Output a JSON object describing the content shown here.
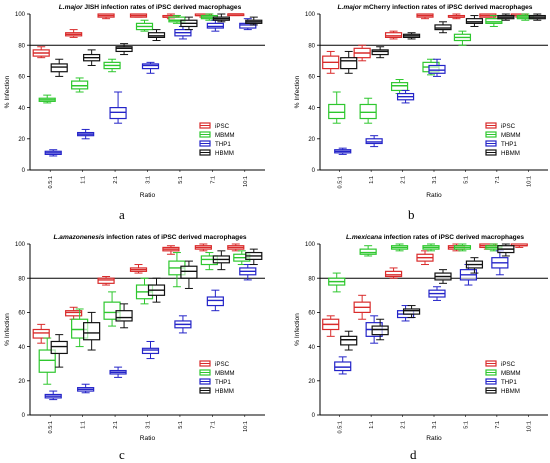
{
  "colors": {
    "iPSC": "#d92b2b",
    "MBMM": "#2ec72e",
    "THP1": "#2424c8",
    "HBMM": "#111111"
  },
  "chart_data": [
    {
      "type": "box",
      "letter": "a",
      "title_italic": "L.major",
      "title_rest": " JISH infection rates of iPSC derived macrophages",
      "xlabel": "Ratio",
      "ylabel": "% Infection",
      "ylim": [
        0,
        100
      ],
      "yticks": [
        0,
        20,
        40,
        60,
        80,
        100
      ],
      "reference_line": 80,
      "categories": [
        "0.5:1",
        "1:1",
        "2:1",
        "3:1",
        "5:1",
        "7:1",
        "10:1"
      ],
      "legend": [
        "iPSC",
        "MBMM",
        "THP1",
        "HBMM"
      ],
      "series": [
        {
          "name": "iPSC",
          "boxes": [
            [
              72,
              73,
              75,
              77,
              79
            ],
            [
              85,
              86,
              87,
              88,
              90
            ],
            [
              97,
              98,
              99,
              100,
              100
            ],
            [
              98,
              98,
              99,
              100,
              100
            ],
            [
              97,
              98,
              98,
              99,
              100
            ],
            [
              98,
              99,
              99,
              100,
              100
            ],
            [
              99,
              99,
              100,
              100,
              100
            ]
          ]
        },
        {
          "name": "MBMM",
          "boxes": [
            [
              43,
              44,
              45,
              46,
              48
            ],
            [
              50,
              52,
              54,
              57,
              59
            ],
            [
              63,
              65,
              67,
              69,
              71
            ],
            [
              89,
              90,
              92,
              94,
              96
            ],
            [
              94,
              95,
              96,
              98,
              99
            ],
            [
              96,
              97,
              98,
              99,
              100
            ],
            [
              null,
              null,
              null,
              null,
              null
            ]
          ]
        },
        {
          "name": "THP1",
          "boxes": [
            [
              9,
              10,
              11,
              12,
              13
            ],
            [
              20,
              22,
              23,
              24,
              26
            ],
            [
              30,
              33,
              37,
              40,
              50
            ],
            [
              62,
              65,
              67,
              68,
              69
            ],
            [
              84,
              86,
              88,
              90,
              92
            ],
            [
              89,
              91,
              92,
              94,
              96
            ],
            [
              90,
              91,
              93,
              94,
              97
            ]
          ]
        },
        {
          "name": "HBMM",
          "boxes": [
            [
              60,
              63,
              66,
              68,
              71
            ],
            [
              67,
              70,
              72,
              74,
              77
            ],
            [
              74,
              76,
              78,
              79,
              81
            ],
            [
              83,
              85,
              86,
              88,
              90
            ],
            [
              90,
              92,
              94,
              96,
              98
            ],
            [
              95,
              96,
              97,
              98,
              100
            ],
            [
              93,
              94,
              95,
              96,
              98
            ]
          ]
        }
      ]
    },
    {
      "type": "box",
      "letter": "b",
      "title_italic": "L.major",
      "title_rest": " mCherry infection rates of iPSC derived macrophages",
      "xlabel": "Ratio",
      "ylabel": "% Infection",
      "ylim": [
        0,
        100
      ],
      "yticks": [
        0,
        20,
        40,
        60,
        80,
        100
      ],
      "reference_line": 80,
      "categories": [
        "0.5:1",
        "1:1",
        "2:1",
        "3:1",
        "5:1",
        "7:1",
        "10:1"
      ],
      "legend": [
        "iPSC",
        "MBMM",
        "THP1",
        "HBMM"
      ],
      "series": [
        {
          "name": "iPSC",
          "boxes": [
            [
              62,
              65,
              69,
              73,
              76
            ],
            [
              70,
              72,
              75,
              78,
              80
            ],
            [
              84,
              85,
              86,
              88,
              89
            ],
            [
              97,
              98,
              99,
              100,
              100
            ],
            [
              97,
              98,
              98,
              99,
              100
            ],
            [
              98,
              98,
              99,
              100,
              100
            ],
            [
              98,
              99,
              99,
              100,
              100
            ]
          ]
        },
        {
          "name": "MBMM",
          "boxes": [
            [
              30,
              33,
              37,
              42,
              50
            ],
            [
              30,
              33,
              37,
              42,
              46
            ],
            [
              49,
              51,
              54,
              56,
              58
            ],
            [
              61,
              63,
              66,
              69,
              71
            ],
            [
              80,
              83,
              85,
              87,
              89
            ],
            [
              92,
              94,
              95,
              97,
              99
            ],
            [
              96,
              97,
              98,
              99,
              100
            ]
          ]
        },
        {
          "name": "THP1",
          "boxes": [
            [
              10,
              11,
              12,
              13,
              14
            ],
            [
              15,
              17,
              18,
              20,
              22
            ],
            [
              43,
              45,
              47,
              49,
              51
            ],
            [
              60,
              62,
              64,
              67,
              71
            ],
            [
              null,
              null,
              null,
              null,
              null
            ],
            [
              null,
              null,
              null,
              null,
              null
            ],
            [
              null,
              null,
              null,
              null,
              null
            ]
          ]
        },
        {
          "name": "HBMM",
          "boxes": [
            [
              62,
              65,
              70,
              72,
              76
            ],
            [
              72,
              74,
              76,
              77,
              79
            ],
            [
              84,
              85,
              86,
              87,
              88
            ],
            [
              88,
              90,
              91,
              93,
              95
            ],
            [
              92,
              94,
              95,
              97,
              99
            ],
            [
              96,
              97,
              98,
              99,
              100
            ],
            [
              96,
              97,
              98,
              99,
              100
            ]
          ]
        }
      ]
    },
    {
      "type": "box",
      "letter": "c",
      "title_italic": "L.amazonenesis",
      "title_rest": " infection rates of iPSC derived macrophages",
      "xlabel": "Ratio",
      "ylabel": "% Infection",
      "ylim": [
        0,
        100
      ],
      "yticks": [
        0,
        20,
        40,
        60,
        80,
        100
      ],
      "reference_line": 80,
      "categories": [
        "0.5:1",
        "1:1",
        "2:1",
        "3:1",
        "5:1",
        "7:1",
        "10:1"
      ],
      "legend": [
        "iPSC",
        "MBMM",
        "THP1",
        "HBMM"
      ],
      "series": [
        {
          "name": "iPSC",
          "boxes": [
            [
              42,
              45,
              48,
              50,
              53
            ],
            [
              56,
              58,
              60,
              61,
              63
            ],
            [
              76,
              77,
              79,
              80,
              81
            ],
            [
              83,
              84,
              85,
              86,
              88
            ],
            [
              94,
              96,
              97,
              98,
              99
            ],
            [
              96,
              97,
              98,
              99,
              100
            ],
            [
              96,
              97,
              98,
              99,
              100
            ]
          ]
        },
        {
          "name": "MBMM",
          "boxes": [
            [
              18,
              25,
              32,
              38,
              45
            ],
            [
              40,
              45,
              50,
              56,
              62
            ],
            [
              52,
              56,
              60,
              66,
              72
            ],
            [
              65,
              68,
              72,
              76,
              80
            ],
            [
              75,
              82,
              86,
              90,
              95
            ],
            [
              85,
              88,
              91,
              93,
              95
            ],
            [
              88,
              90,
              92,
              94,
              96
            ]
          ]
        },
        {
          "name": "THP1",
          "boxes": [
            [
              9,
              10,
              11,
              12,
              14
            ],
            [
              13,
              14,
              15,
              16,
              18
            ],
            [
              22,
              24,
              25,
              26,
              28
            ],
            [
              33,
              36,
              38,
              39,
              43
            ],
            [
              48,
              51,
              53,
              55,
              58
            ],
            [
              61,
              64,
              67,
              69,
              73
            ],
            [
              79,
              82,
              84,
              86,
              88
            ]
          ]
        },
        {
          "name": "HBMM",
          "boxes": [
            [
              28,
              36,
              40,
              43,
              47
            ],
            [
              38,
              44,
              48,
              54,
              60
            ],
            [
              51,
              55,
              57,
              61,
              65
            ],
            [
              66,
              70,
              73,
              76,
              80
            ],
            [
              74,
              80,
              84,
              87,
              90
            ],
            [
              85,
              89,
              91,
              93,
              96
            ],
            [
              88,
              91,
              93,
              95,
              97
            ]
          ]
        }
      ]
    },
    {
      "type": "box",
      "letter": "d",
      "title_italic": "L.mexicana",
      "title_rest": " infection rates of iPSC derived macrophages",
      "xlabel": "Ratio",
      "ylabel": "% Infection",
      "ylim": [
        0,
        100
      ],
      "yticks": [
        0,
        20,
        40,
        60,
        80,
        100
      ],
      "reference_line": 80,
      "categories": [
        "0.5:1",
        "1:1",
        "2:1",
        "3:1",
        "5:1",
        "7:1",
        "10:1"
      ],
      "legend": [
        "iPSC",
        "MBMM",
        "THP1",
        "HBMM"
      ],
      "series": [
        {
          "name": "iPSC",
          "boxes": [
            [
              46,
              50,
              53,
              56,
              58
            ],
            [
              56,
              60,
              63,
              66,
              70
            ],
            [
              80,
              81,
              82,
              84,
              86
            ],
            [
              88,
              90,
              92,
              94,
              96
            ],
            [
              96,
              97,
              98,
              99,
              100
            ],
            [
              97,
              98,
              99,
              100,
              100
            ],
            [
              98,
              99,
              99,
              100,
              100
            ]
          ]
        },
        {
          "name": "MBMM",
          "boxes": [
            [
              72,
              76,
              78,
              80,
              83
            ],
            [
              93,
              94,
              95,
              97,
              99
            ],
            [
              96,
              97,
              98,
              99,
              100
            ],
            [
              96,
              97,
              98,
              99,
              100
            ],
            [
              96,
              97,
              98,
              99,
              100
            ],
            [
              96,
              97,
              98,
              99,
              100
            ],
            [
              null,
              null,
              null,
              null,
              null
            ]
          ]
        },
        {
          "name": "THP1",
          "boxes": [
            [
              24,
              26,
              28,
              31,
              34
            ],
            [
              42,
              46,
              50,
              54,
              58
            ],
            [
              55,
              57,
              59,
              61,
              64
            ],
            [
              67,
              69,
              71,
              73,
              75
            ],
            [
              76,
              79,
              82,
              85,
              88
            ],
            [
              82,
              86,
              89,
              92,
              96
            ],
            [
              null,
              null,
              null,
              null,
              null
            ]
          ]
        },
        {
          "name": "HBMM",
          "boxes": [
            [
              38,
              41,
              44,
              46,
              49
            ],
            [
              44,
              47,
              50,
              52,
              56
            ],
            [
              57,
              59,
              61,
              62,
              64
            ],
            [
              77,
              79,
              81,
              83,
              85
            ],
            [
              83,
              86,
              88,
              90,
              92
            ],
            [
              93,
              95,
              97,
              99,
              100
            ],
            [
              null,
              null,
              null,
              null,
              null
            ]
          ]
        }
      ]
    }
  ]
}
